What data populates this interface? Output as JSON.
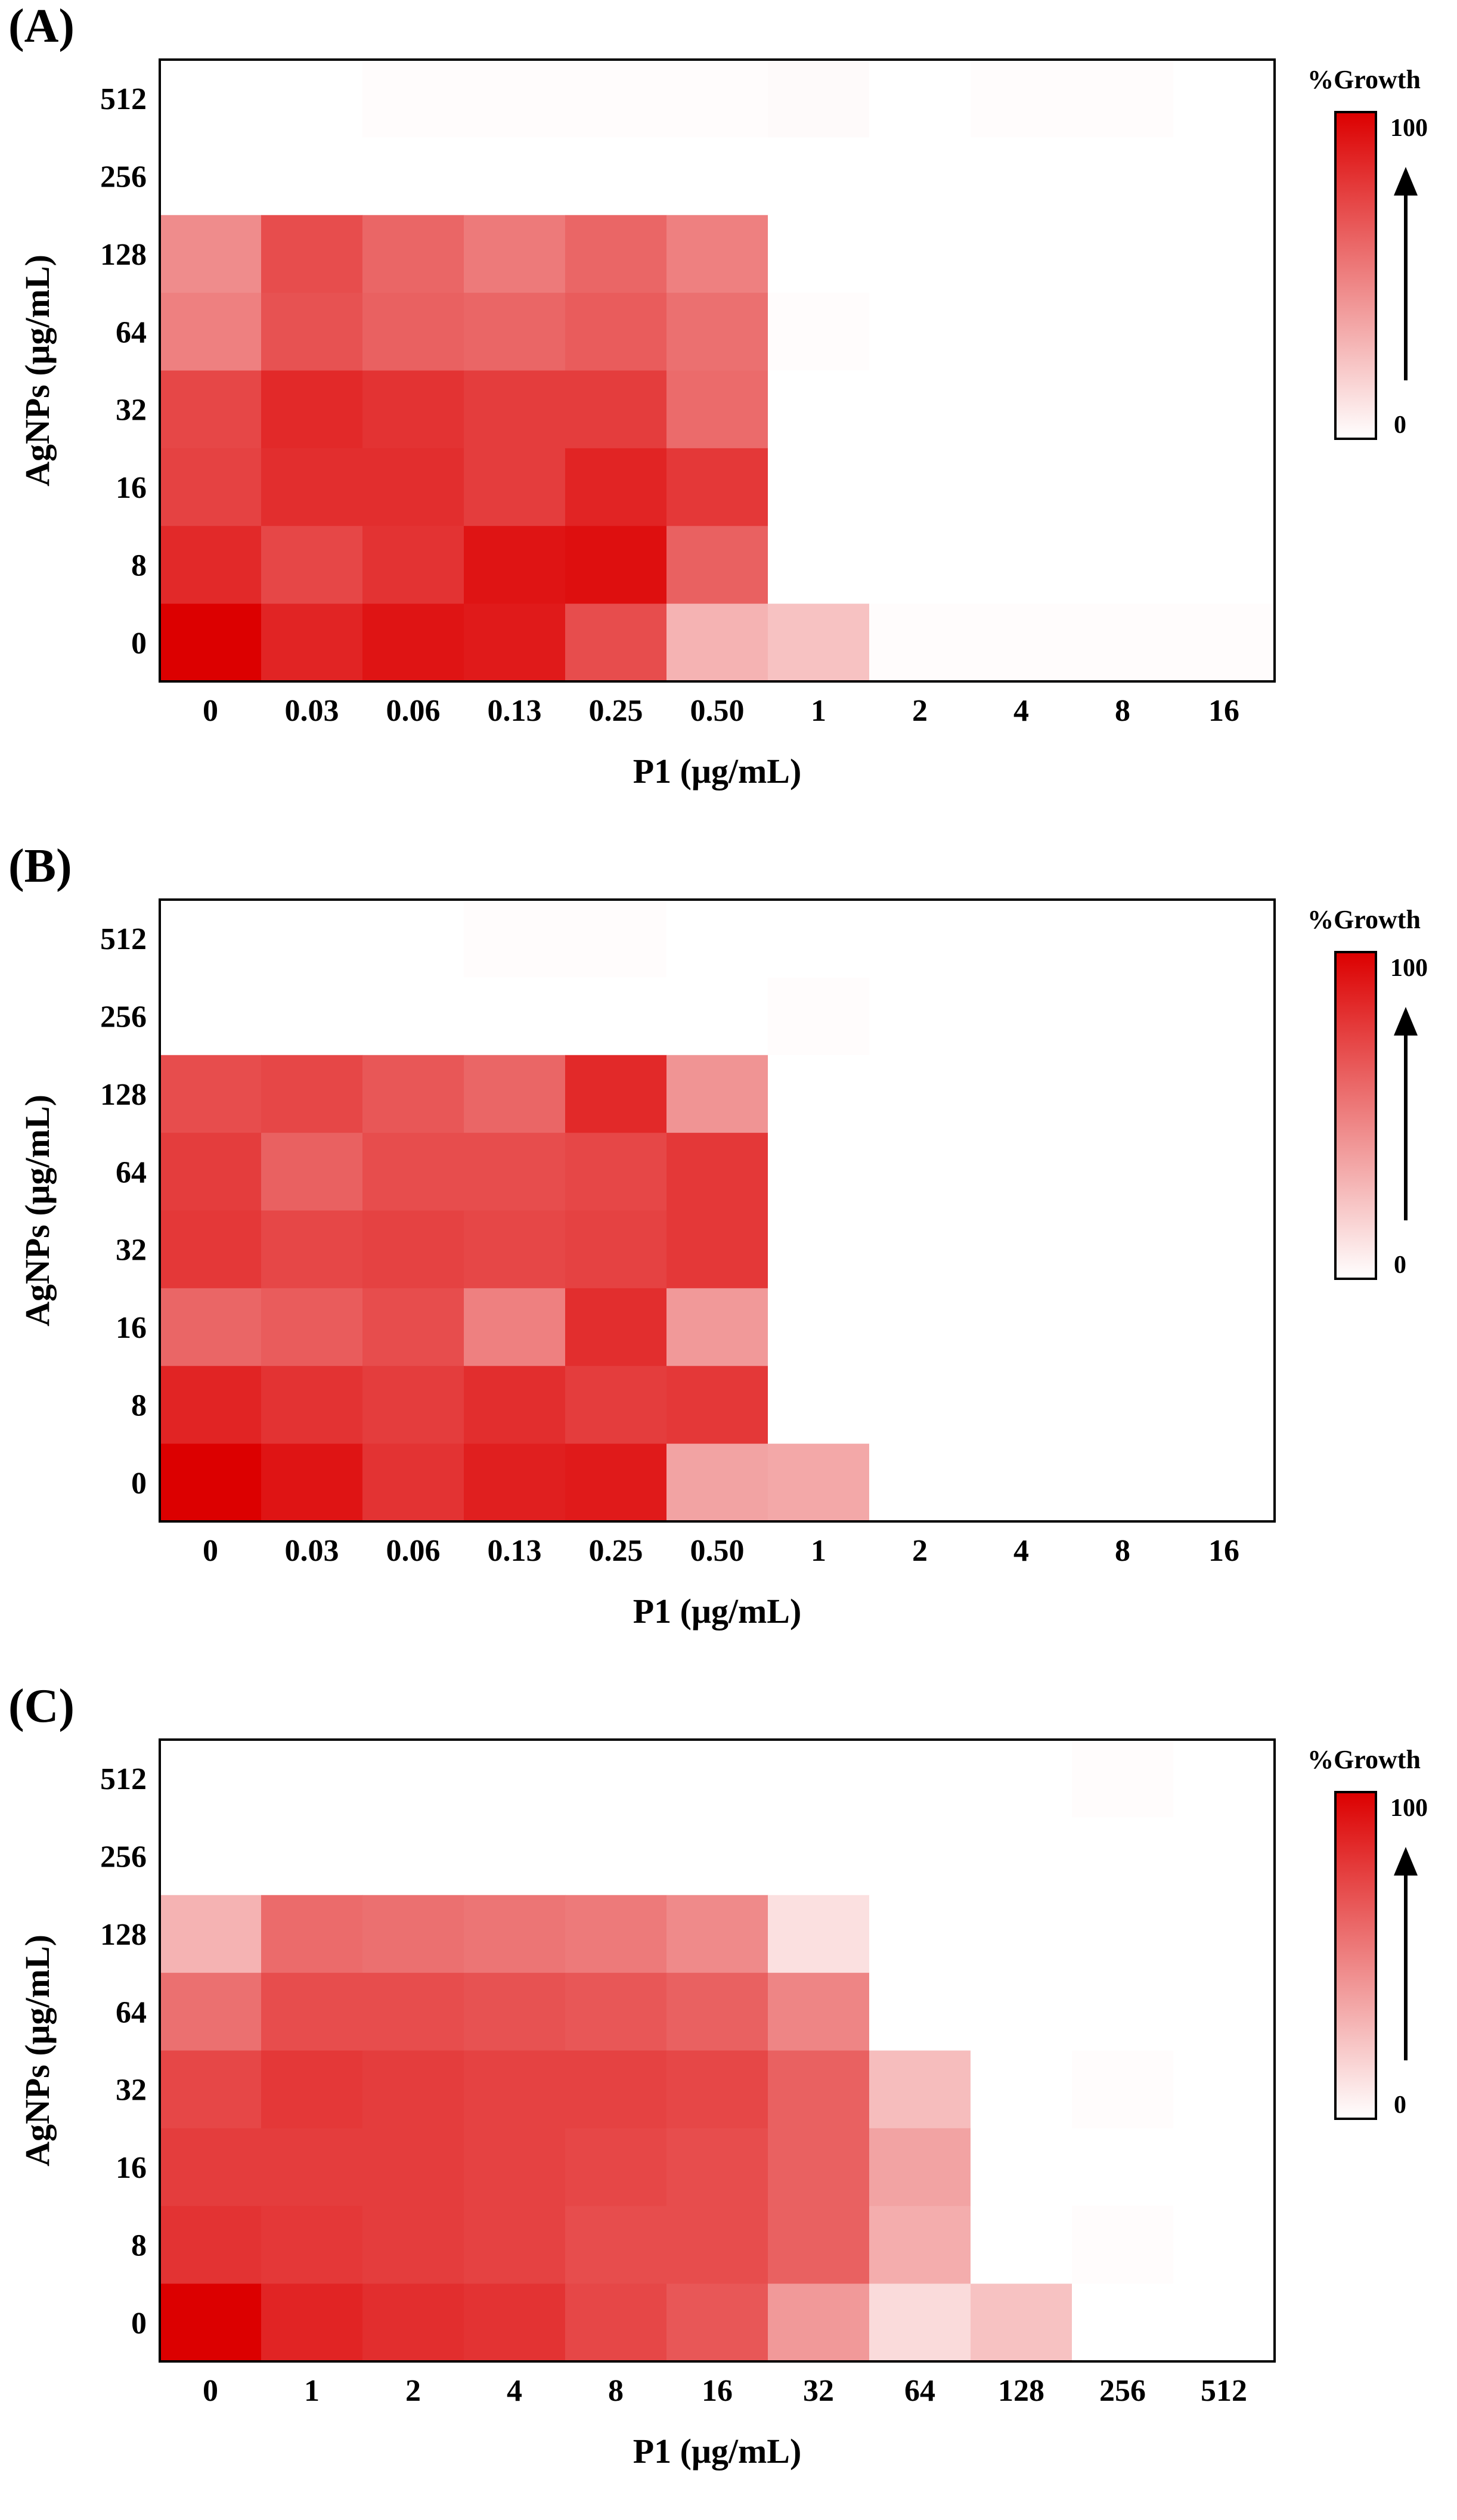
{
  "colorscale": {
    "low": "#ffffff",
    "high": "#dc0000"
  },
  "chart_data": [
    {
      "type": "heatmap",
      "panel_label": "(A)",
      "xlabel": "P1 (μg/mL)",
      "ylabel": "AgNPs (μg/mL)",
      "x_categories": [
        "0",
        "0.03",
        "0.06",
        "0.13",
        "0.25",
        "0.50",
        "1",
        "2",
        "4",
        "8",
        "16"
      ],
      "y_categories": [
        "512",
        "256",
        "128",
        "64",
        "32",
        "16",
        "8",
        "0"
      ],
      "legend": {
        "title": "%Growth",
        "max_label": "100",
        "min_label": "0"
      },
      "values": [
        [
          0,
          0,
          1,
          1,
          1,
          1,
          2,
          0,
          1,
          1,
          0
        ],
        [
          0,
          0,
          0,
          0,
          0,
          0,
          0,
          0,
          0,
          0,
          0
        ],
        [
          45,
          70,
          60,
          52,
          60,
          50,
          0,
          0,
          0,
          0,
          0
        ],
        [
          50,
          68,
          62,
          60,
          64,
          56,
          1,
          0,
          0,
          0,
          0
        ],
        [
          72,
          84,
          80,
          76,
          76,
          58,
          0,
          0,
          0,
          0,
          0
        ],
        [
          74,
          82,
          82,
          76,
          86,
          78,
          0,
          0,
          0,
          0,
          0
        ],
        [
          84,
          72,
          80,
          92,
          94,
          62,
          0,
          0,
          0,
          0,
          0
        ],
        [
          100,
          86,
          92,
          90,
          70,
          30,
          24,
          1,
          1,
          1,
          1
        ]
      ]
    },
    {
      "type": "heatmap",
      "panel_label": "(B)",
      "xlabel": "P1 (μg/mL)",
      "ylabel": "AgNPs (μg/mL)",
      "x_categories": [
        "0",
        "0.03",
        "0.06",
        "0.13",
        "0.25",
        "0.50",
        "1",
        "2",
        "4",
        "8",
        "16"
      ],
      "y_categories": [
        "512",
        "256",
        "128",
        "64",
        "32",
        "16",
        "8",
        "0"
      ],
      "legend": {
        "title": "%Growth",
        "max_label": "100",
        "min_label": "0"
      },
      "values": [
        [
          0,
          0,
          0,
          1,
          1,
          0,
          0,
          0,
          0,
          0,
          0
        ],
        [
          0,
          0,
          0,
          0,
          0,
          0,
          1,
          0,
          0,
          0,
          0
        ],
        [
          70,
          72,
          66,
          60,
          84,
          42,
          0,
          0,
          0,
          0,
          0
        ],
        [
          76,
          62,
          70,
          70,
          72,
          78,
          0,
          0,
          0,
          0,
          0
        ],
        [
          78,
          72,
          74,
          72,
          74,
          78,
          0,
          0,
          0,
          0,
          0
        ],
        [
          60,
          64,
          70,
          50,
          82,
          40,
          0,
          0,
          0,
          0,
          0
        ],
        [
          86,
          80,
          76,
          82,
          76,
          78,
          0,
          0,
          0,
          0,
          0
        ],
        [
          100,
          92,
          80,
          88,
          90,
          36,
          34,
          0,
          0,
          0,
          0
        ]
      ]
    },
    {
      "type": "heatmap",
      "panel_label": "(C)",
      "xlabel": "P1 (μg/mL)",
      "ylabel": "AgNPs (μg/mL)",
      "x_categories": [
        "0",
        "1",
        "2",
        "4",
        "8",
        "16",
        "32",
        "64",
        "128",
        "256",
        "512"
      ],
      "y_categories": [
        "512",
        "256",
        "128",
        "64",
        "32",
        "16",
        "8",
        "0"
      ],
      "legend": {
        "title": "%Growth",
        "max_label": "100",
        "min_label": "0"
      },
      "values": [
        [
          0,
          0,
          0,
          0,
          0,
          0,
          0,
          0,
          0,
          1,
          0
        ],
        [
          0,
          0,
          0,
          0,
          0,
          0,
          0,
          0,
          0,
          0,
          0
        ],
        [
          30,
          58,
          56,
          54,
          52,
          46,
          12,
          0,
          0,
          0,
          0
        ],
        [
          56,
          70,
          70,
          68,
          66,
          62,
          48,
          0,
          0,
          0,
          0
        ],
        [
          72,
          78,
          76,
          74,
          74,
          72,
          62,
          26,
          0,
          1,
          0
        ],
        [
          76,
          76,
          76,
          74,
          72,
          70,
          62,
          36,
          0,
          0,
          0
        ],
        [
          80,
          78,
          76,
          74,
          70,
          70,
          62,
          32,
          0,
          1,
          0
        ],
        [
          100,
          86,
          82,
          80,
          72,
          66,
          40,
          14,
          24,
          0,
          0
        ]
      ]
    }
  ]
}
